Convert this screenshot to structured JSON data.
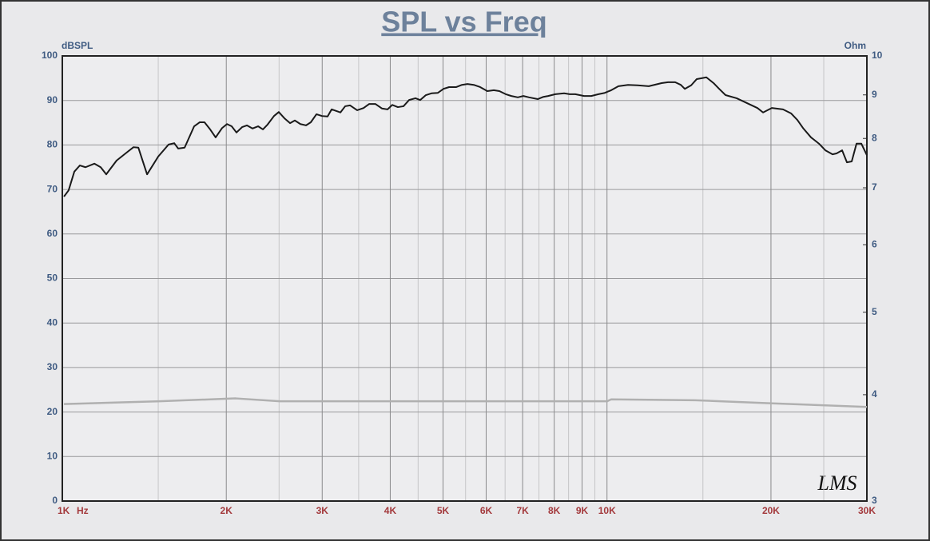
{
  "chart_data": {
    "type": "line",
    "title": "SPL vs Freq",
    "ylabel": "dBSPL",
    "y2label": "Ohm",
    "xlabel": "Hz",
    "annotation": "LMS",
    "xlog": true,
    "y2log": true,
    "grid": true,
    "xlim": [
      1000,
      30000
    ],
    "xticks": [
      {
        "value": 1000,
        "label": "1K"
      },
      {
        "value": 2000,
        "label": "2K"
      },
      {
        "value": 3000,
        "label": "3K"
      },
      {
        "value": 4000,
        "label": "4K"
      },
      {
        "value": 5000,
        "label": "5K"
      },
      {
        "value": 6000,
        "label": "6K"
      },
      {
        "value": 7000,
        "label": "7K"
      },
      {
        "value": 8000,
        "label": "8K"
      },
      {
        "value": 9000,
        "label": "9K"
      },
      {
        "value": 10000,
        "label": "10K"
      },
      {
        "value": 20000,
        "label": "20K"
      },
      {
        "value": 30000,
        "label": "30K"
      }
    ],
    "xminorticks": [
      1500,
      2500,
      3500,
      4500,
      5500,
      6500,
      7500,
      8500,
      9500,
      15000,
      25000
    ],
    "ylim": [
      0,
      100
    ],
    "yticks": [
      0,
      10,
      20,
      30,
      40,
      50,
      60,
      70,
      80,
      90,
      100
    ],
    "y2lim": [
      3,
      10
    ],
    "y2ticks": [
      3,
      4,
      5,
      6,
      7,
      8,
      9,
      10
    ],
    "series": [
      {
        "color": "#1a1a1a",
        "axis": "y",
        "x": [
          1007,
          1027,
          1052,
          1077,
          1103,
          1145,
          1176,
          1204,
          1258,
          1319,
          1351,
          1379,
          1431,
          1500,
          1567,
          1605,
          1632,
          1677,
          1746,
          1788,
          1824,
          1868,
          1912,
          1965,
          2006,
          2046,
          2088,
          2138,
          2182,
          2234,
          2288,
          2335,
          2382,
          2447,
          2497,
          2557,
          2619,
          2672,
          2736,
          2802,
          2859,
          2928,
          2998,
          3069,
          3122,
          3240,
          3306,
          3374,
          3478,
          3573,
          3658,
          3758,
          3861,
          3954,
          4035,
          4131,
          4230,
          4332,
          4450,
          4541,
          4650,
          4761,
          4892,
          5010,
          5129,
          5288,
          5415,
          5544,
          5695,
          5850,
          6030,
          6197,
          6345,
          6519,
          6675,
          6858,
          7022,
          7190,
          7462,
          7641,
          7797,
          8037,
          8342,
          8542,
          8745,
          9077,
          9357,
          9645,
          9908,
          10179,
          10495,
          10929,
          11381,
          11932,
          12596,
          12941,
          13340,
          13660,
          13893,
          14273,
          14615,
          15220,
          15690,
          16066,
          16505,
          17298,
          18076,
          18889,
          19342,
          20074,
          21046,
          21770,
          22365,
          22901,
          23690,
          24497,
          25170,
          25947,
          26387,
          27019,
          27574,
          28138,
          28714,
          29302,
          30000
        ],
        "values": [
          68.4,
          69.8,
          74.0,
          75.4,
          75.0,
          75.8,
          75.0,
          73.4,
          76.5,
          78.5,
          79.5,
          79.4,
          73.4,
          77.4,
          80.1,
          80.4,
          79.2,
          79.4,
          84.2,
          85.1,
          85.1,
          83.5,
          81.7,
          83.8,
          84.7,
          84.2,
          82.8,
          84.0,
          84.4,
          83.7,
          84.2,
          83.5,
          84.6,
          86.5,
          87.4,
          86.0,
          84.9,
          85.5,
          84.7,
          84.4,
          85.1,
          86.9,
          86.5,
          86.4,
          88.0,
          87.3,
          88.7,
          88.9,
          87.8,
          88.3,
          89.2,
          89.2,
          88.2,
          88.0,
          89.0,
          88.5,
          88.7,
          90.1,
          90.5,
          90.1,
          91.2,
          91.6,
          91.7,
          92.6,
          93.0,
          93.0,
          93.5,
          93.7,
          93.5,
          93.0,
          92.1,
          92.3,
          92.1,
          91.4,
          91.0,
          90.7,
          91.0,
          90.7,
          90.3,
          90.8,
          91.0,
          91.4,
          91.6,
          91.4,
          91.4,
          91.0,
          91.0,
          91.4,
          91.7,
          92.3,
          93.2,
          93.5,
          93.4,
          93.2,
          93.9,
          94.1,
          94.1,
          93.5,
          92.6,
          93.4,
          94.8,
          95.2,
          93.9,
          92.6,
          91.2,
          90.5,
          89.4,
          88.3,
          87.3,
          88.3,
          88.0,
          87.1,
          85.6,
          83.8,
          81.7,
          80.3,
          78.8,
          77.9,
          78.1,
          78.8,
          76.1,
          76.3,
          80.3,
          80.3,
          77.7
        ]
      },
      {
        "color": "#b0b0b0",
        "axis": "y2",
        "x": [
          1007,
          1510,
          2081,
          2506,
          4159,
          10009,
          10179,
          14517,
          19672,
          30000
        ],
        "values": [
          3.9,
          3.93,
          3.96,
          3.93,
          3.93,
          3.93,
          3.95,
          3.94,
          3.91,
          3.87
        ]
      }
    ]
  }
}
